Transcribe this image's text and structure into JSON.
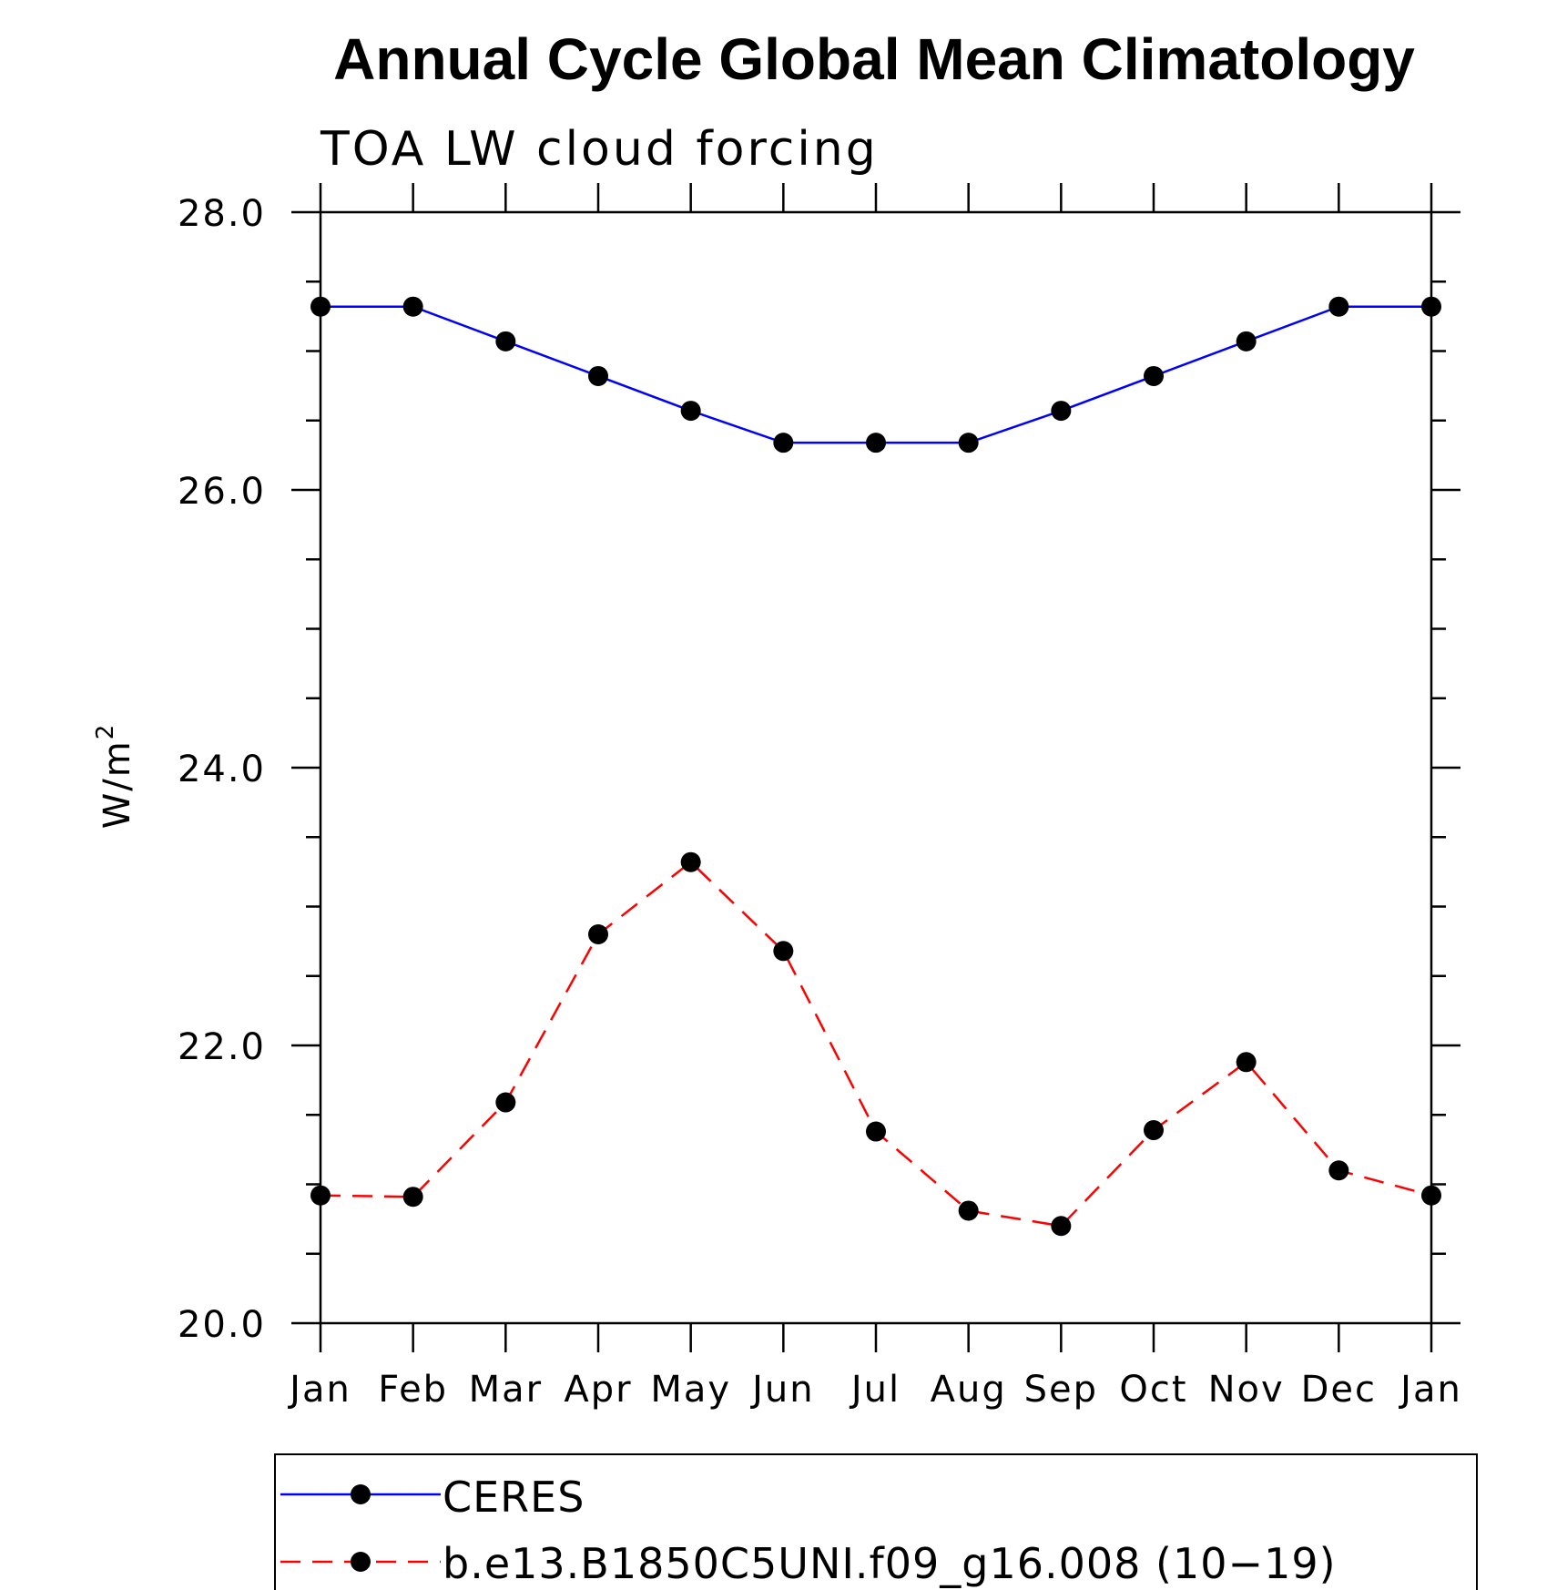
{
  "chart_data": {
    "type": "line",
    "title": "Annual Cycle Global Mean Climatology",
    "subtitle": "TOA LW cloud forcing",
    "ylabel": "W/m",
    "ylabel_superscript": "2",
    "xlabel": "",
    "categories": [
      "Jan",
      "Feb",
      "Mar",
      "Apr",
      "May",
      "Jun",
      "Jul",
      "Aug",
      "Sep",
      "Oct",
      "Nov",
      "Dec",
      "Jan"
    ],
    "ylim": [
      20.0,
      28.0
    ],
    "yticks": [
      "20.0",
      "22.0",
      "24.0",
      "26.0",
      "28.0"
    ],
    "grid": false,
    "legend_position": "bottom",
    "series": [
      {
        "name": "CERES",
        "color": "#0000ff",
        "line_style": "solid",
        "marker": "filled-circle",
        "values": [
          27.32,
          27.32,
          27.07,
          26.82,
          26.57,
          26.34,
          26.34,
          26.34,
          26.57,
          26.82,
          27.07,
          27.32,
          27.32
        ]
      },
      {
        "name": "b.e13.B1850C5UNI.f09_g16.008 (10−19)",
        "color": "#ff0000",
        "line_style": "dashed",
        "marker": "filled-circle",
        "values": [
          20.92,
          20.91,
          21.59,
          22.8,
          23.32,
          22.68,
          21.38,
          20.81,
          20.7,
          21.39,
          21.88,
          21.1,
          20.92
        ]
      }
    ]
  }
}
